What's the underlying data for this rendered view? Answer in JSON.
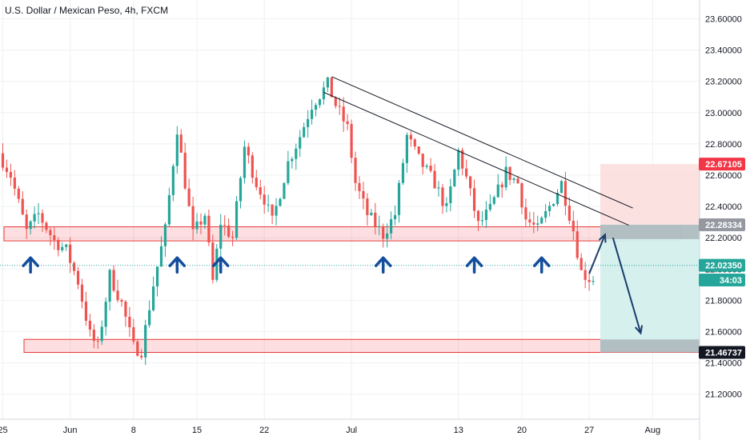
{
  "chart_data": {
    "type": "candlestick",
    "title": "U.S. Dollar / Mexican Peso, 4h, FXCM",
    "x_axis": {
      "tick_labels": [
        "25",
        "Jun",
        "8",
        "15",
        "22",
        "Jul",
        "13",
        "20",
        "27",
        "Aug"
      ]
    },
    "y_axis": {
      "position": "right",
      "range": [
        21.04,
        23.72
      ],
      "tick_values": [
        21.2,
        21.4,
        21.6,
        21.8,
        22.0,
        22.2,
        22.4,
        22.6,
        22.8,
        23.0,
        23.2,
        23.4,
        23.6
      ],
      "tick_labels": [
        "21.20000",
        "21.40000",
        "21.60000",
        "21.80000",
        "22.00000",
        "22.20000",
        "22.40000",
        "22.60000",
        "22.80000",
        "23.00000",
        "23.20000",
        "23.40000",
        "23.60000"
      ]
    },
    "price_badges": [
      {
        "label": "22.67105",
        "value": 22.671,
        "color": "#f23645"
      },
      {
        "label": "22.28334",
        "value": 22.283,
        "color": "#9598a1"
      },
      {
        "label": "22.02350",
        "value": 22.024,
        "color": "#26a69a"
      },
      {
        "label": "34:03",
        "value": 21.93,
        "color": "#26a69a"
      },
      {
        "label": "21.46737",
        "value": 21.467,
        "color": "#131722"
      }
    ],
    "current_price": 22.0235,
    "support_zones": [
      {
        "low": 22.18,
        "high": 22.27
      },
      {
        "low": 21.467,
        "high": 21.55
      }
    ],
    "trend_lines": [
      {
        "from": {
          "bar": 83,
          "price": 23.23
        },
        "to": {
          "bar": 159,
          "price": 22.39
        }
      },
      {
        "from": {
          "bar": 81,
          "price": 23.13
        },
        "to": {
          "bar": 158,
          "price": 22.28
        }
      }
    ],
    "position_tool": {
      "entry": 22.28334,
      "stop": 22.67105,
      "target": 21.46737,
      "profit_color": "#d3efec",
      "loss_color": "#fcdcdc"
    },
    "arrows_up_at_bars": [
      7,
      44,
      55,
      96,
      119,
      136
    ],
    "projection_path": [
      {
        "bar": 148,
        "price": 21.97
      },
      {
        "bar": 152,
        "price": 22.22
      },
      {
        "bar": 154,
        "price": 22.2
      },
      {
        "bar": 161,
        "price": 21.59
      }
    ],
    "colors": {
      "up": "#26a69a",
      "down": "#ef5350",
      "arrow": "#134d9c",
      "zone_border": "#e53935"
    }
  }
}
